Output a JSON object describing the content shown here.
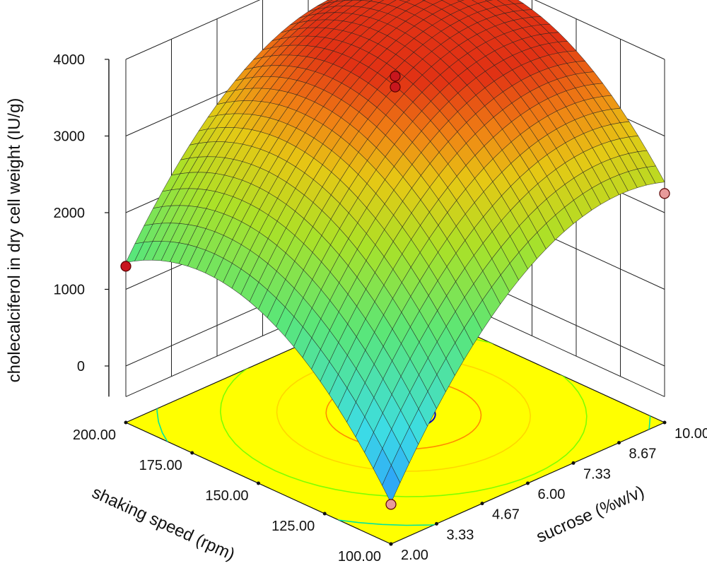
{
  "chart_data": {
    "type": "surface3d",
    "zlabel": "cholecalciferol in dry cell weight (IU/g)",
    "xlabel": "shaking speed (rpm)",
    "ylabel": "sucrose (%w/v)",
    "z_ticks": [
      "0",
      "1000",
      "2000",
      "3000",
      "4000"
    ],
    "x_ticks": [
      "100.00",
      "125.00",
      "150.00",
      "175.00",
      "200.00"
    ],
    "y_ticks": [
      "2.00",
      "3.33",
      "4.67",
      "6.00",
      "7.33",
      "8.67",
      "10.00"
    ],
    "xlim": [
      100,
      200
    ],
    "ylim": [
      2,
      10
    ],
    "zlim": [
      0,
      4000
    ],
    "model": {
      "center_z": 3650,
      "corner_front_z": -200,
      "corner_left_z": 1350,
      "corner_right_z": 2400,
      "corner_back_z": 3400
    },
    "design_points": [
      {
        "x": 150,
        "y": 6,
        "z": 3780,
        "color": "#c8161d"
      },
      {
        "x": 150,
        "y": 6,
        "z": 3640,
        "color": "#c8161d"
      },
      {
        "x": 200,
        "y": 2,
        "z": 1300,
        "color": "#c8161d"
      },
      {
        "x": 100,
        "y": 10,
        "z": 2250,
        "color": "#e89a9a"
      },
      {
        "x": 100,
        "y": 2,
        "z": -220,
        "color": "#e89a9a"
      }
    ],
    "colors": {
      "floor": "#ffff00",
      "contour_colors": [
        "#ff8c00",
        "#ffd700",
        "#7fff00",
        "#00e5a0",
        "#0000cc"
      ]
    },
    "grid": true
  }
}
